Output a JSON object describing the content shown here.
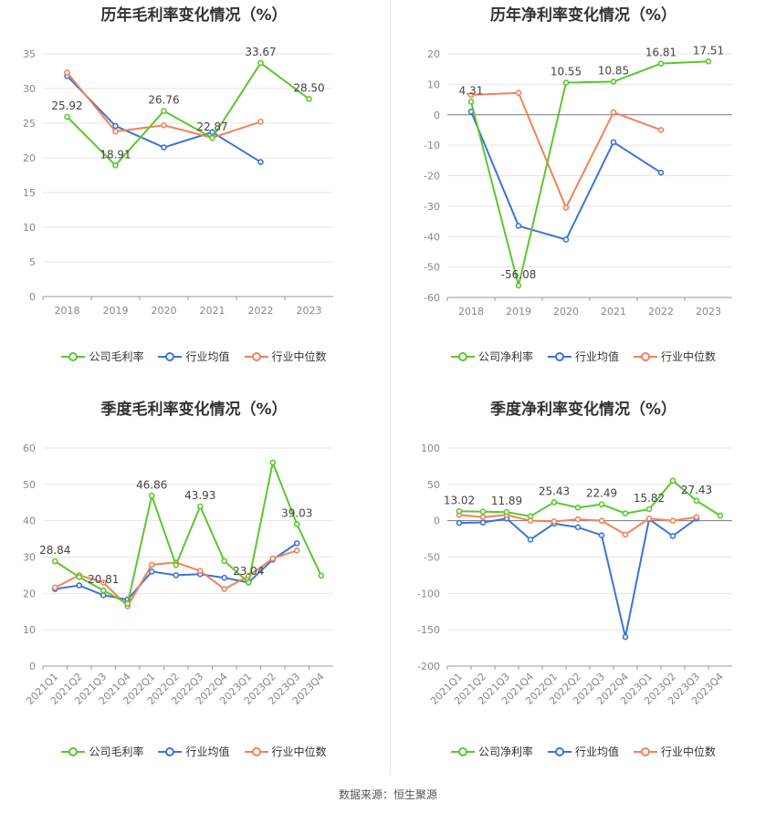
{
  "source": "数据来源：恒生聚源",
  "chart_data": [
    {
      "type": "line",
      "title": "历年毛利率变化情况（%）",
      "categories": [
        "2018",
        "2019",
        "2020",
        "2021",
        "2022",
        "2023"
      ],
      "ylim": [
        0,
        35
      ],
      "yticks": [
        0,
        5,
        10,
        15,
        20,
        25,
        30,
        35
      ],
      "series": [
        {
          "name": "公司毛利率",
          "color": "#5cc72e",
          "values": [
            25.92,
            18.91,
            26.76,
            22.87,
            33.67,
            28.5
          ]
        },
        {
          "name": "行业均值",
          "color": "#3c74db",
          "values": [
            31.8,
            24.6,
            21.5,
            23.7,
            19.4,
            null
          ]
        },
        {
          "name": "行业中位数",
          "color": "#f2825b",
          "values": [
            32.3,
            23.8,
            24.7,
            22.9,
            25.2,
            null
          ]
        }
      ],
      "labels": [
        "25.92",
        "18.91",
        "26.76",
        "22.87",
        "33.67",
        "28.50"
      ],
      "grid": true,
      "legend": "bottom"
    },
    {
      "type": "line",
      "title": "历年净利率变化情况（%）",
      "categories": [
        "2018",
        "2019",
        "2020",
        "2021",
        "2022",
        "2023"
      ],
      "ylim": [
        -60,
        20
      ],
      "yticks": [
        -60,
        -50,
        -40,
        -30,
        -20,
        -10,
        0,
        10,
        20
      ],
      "series": [
        {
          "name": "公司净利率",
          "color": "#5cc72e",
          "values": [
            4.31,
            -56.08,
            10.55,
            10.85,
            16.81,
            17.51
          ]
        },
        {
          "name": "行业均值",
          "color": "#3c74db",
          "values": [
            1.0,
            -36.5,
            -41.0,
            -9.0,
            -19.0,
            null
          ]
        },
        {
          "name": "行业中位数",
          "color": "#f2825b",
          "values": [
            6.5,
            7.2,
            -30.5,
            0.8,
            -5.0,
            null
          ]
        }
      ],
      "labels": [
        "4.31",
        "-56.08",
        "10.55",
        "10.85",
        "16.81",
        "17.51"
      ],
      "grid": true,
      "legend": "bottom"
    },
    {
      "type": "line",
      "title": "季度毛利率变化情况（%）",
      "categories": [
        "2021Q1",
        "2021Q2",
        "2021Q3",
        "2021Q4",
        "2022Q1",
        "2022Q2",
        "2022Q3",
        "2022Q4",
        "2023Q1",
        "2023Q2",
        "2023Q3",
        "2023Q4"
      ],
      "ylim": [
        0,
        60
      ],
      "yticks": [
        0,
        10,
        20,
        30,
        40,
        50,
        60
      ],
      "series": [
        {
          "name": "公司毛利率",
          "color": "#5cc72e",
          "values": [
            28.84,
            24.5,
            20.81,
            17.2,
            46.86,
            27.8,
            43.93,
            28.9,
            23.04,
            56.0,
            39.03,
            24.9
          ]
        },
        {
          "name": "行业均值",
          "color": "#3c74db",
          "values": [
            21.2,
            22.2,
            19.5,
            18.3,
            26.0,
            25.0,
            25.3,
            24.3,
            23.0,
            29.3,
            33.8,
            null
          ]
        },
        {
          "name": "行业中位数",
          "color": "#f2825b",
          "values": [
            21.6,
            25.0,
            23.0,
            16.5,
            27.9,
            28.5,
            26.2,
            21.2,
            24.8,
            29.6,
            31.8,
            null
          ]
        }
      ],
      "labels": [
        "28.84",
        "",
        "20.81",
        "",
        "46.86",
        "",
        "43.93",
        "",
        "23.04",
        "",
        "39.03",
        ""
      ],
      "grid": true,
      "legend": "bottom"
    },
    {
      "type": "line",
      "title": "季度净利率变化情况（%）",
      "categories": [
        "2021Q1",
        "2021Q2",
        "2021Q3",
        "2021Q4",
        "2022Q1",
        "2022Q2",
        "2022Q3",
        "2022Q4",
        "2023Q1",
        "2023Q2",
        "2023Q3",
        "2023Q4"
      ],
      "ylim": [
        -200,
        100
      ],
      "yticks": [
        -200,
        -150,
        -100,
        -50,
        0,
        50,
        100
      ],
      "series": [
        {
          "name": "公司净利率",
          "color": "#5cc72e",
          "values": [
            13.02,
            12.5,
            11.89,
            6.0,
            25.43,
            18.0,
            22.49,
            10.0,
            15.82,
            55.0,
            27.43,
            7.0
          ]
        },
        {
          "name": "行业均值",
          "color": "#3c74db",
          "values": [
            -3.0,
            -2.5,
            3.0,
            -26.0,
            -4.0,
            -9.0,
            -20.0,
            -160.0,
            2.0,
            -21.0,
            3.0,
            null
          ]
        },
        {
          "name": "行业中位数",
          "color": "#f2825b",
          "values": [
            8.0,
            5.0,
            8.0,
            0.0,
            -1.0,
            2.0,
            0.0,
            -19.0,
            3.0,
            0.0,
            5.0,
            null
          ]
        }
      ],
      "labels": [
        "13.02",
        "",
        "11.89",
        "",
        "25.43",
        "",
        "22.49",
        "",
        "15.82",
        "",
        "27.43",
        ""
      ],
      "grid": true,
      "legend": "bottom"
    }
  ]
}
